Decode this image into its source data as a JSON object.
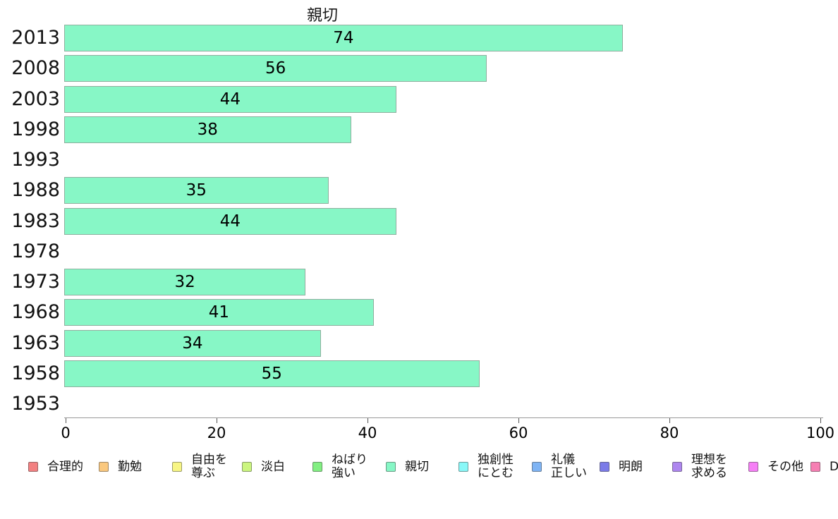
{
  "chart_data": {
    "type": "bar",
    "orientation": "horizontal",
    "title": "親切",
    "categories": [
      "2013",
      "2008",
      "2003",
      "1998",
      "1993",
      "1988",
      "1983",
      "1978",
      "1973",
      "1968",
      "1963",
      "1958",
      "1953"
    ],
    "values": [
      74,
      56,
      44,
      38,
      null,
      35,
      44,
      null,
      32,
      41,
      34,
      55,
      null
    ],
    "xlabel": "",
    "ylabel": "",
    "xlim": [
      0,
      100
    ],
    "x_ticks": [
      "0",
      "20",
      "40",
      "60",
      "80",
      "100"
    ],
    "grid": false,
    "legend_position": "bottom",
    "bar_color": "#87F7C6",
    "bar_border_color": "#90AF9F",
    "legend": [
      {
        "label": "合理的",
        "color": "#F28081"
      },
      {
        "label": "勤勉",
        "color": "#FAC87E"
      },
      {
        "label": "自由を\n尊ぶ",
        "color": "#F7F584"
      },
      {
        "label": "淡白",
        "color": "#CBF57F"
      },
      {
        "label": "ねばり\n強い",
        "color": "#82EF82"
      },
      {
        "label": "親切",
        "color": "#87F7C6"
      },
      {
        "label": "独創性\nにとむ",
        "color": "#89F8F8"
      },
      {
        "label": "礼儀\n正しい",
        "color": "#7FB4F4"
      },
      {
        "label": "明朗",
        "color": "#7B7BE8"
      },
      {
        "label": "理想を\n求める",
        "color": "#AE86EF"
      },
      {
        "label": "その他",
        "color": "#F67FF6"
      },
      {
        "label": "D",
        "color": "#F67FB3"
      }
    ]
  }
}
